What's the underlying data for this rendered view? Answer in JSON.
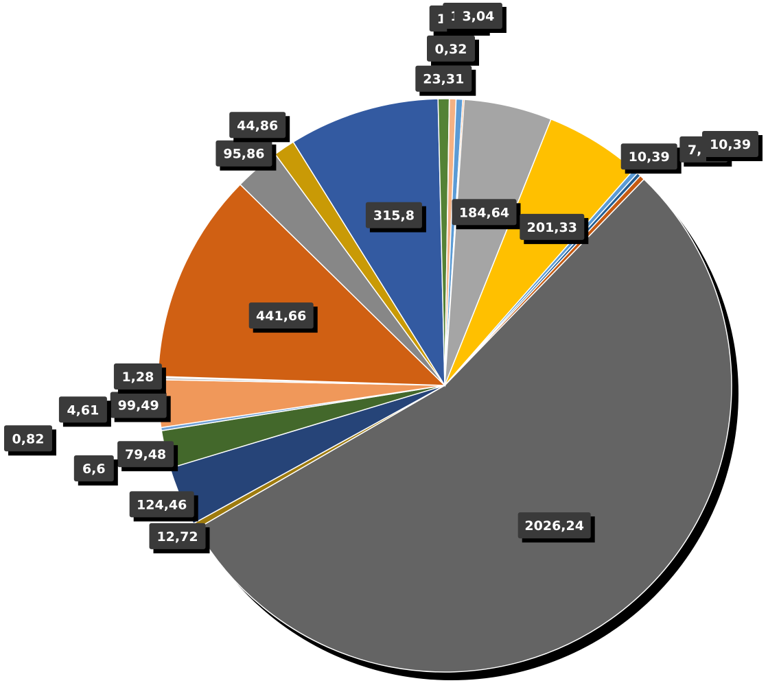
{
  "chart_data": {
    "type": "pie",
    "title": "",
    "slices": [
      {
        "value": 2026.24,
        "label": "2026,24",
        "color": "#646464"
      },
      {
        "value": 12.72,
        "label": "12,72",
        "color": "#9e7b0e"
      },
      {
        "value": 124.46,
        "label": "124,46",
        "color": "#264478"
      },
      {
        "value": 79.48,
        "label": "79,48",
        "color": "#43682b"
      },
      {
        "value": 6.6,
        "label": "6,6",
        "color": "#6fa0d6"
      },
      {
        "value": 99.49,
        "label": "99,49",
        "color": "#f0985a"
      },
      {
        "value": 4.61,
        "label": "4,61",
        "color": "#bfbfbf"
      },
      {
        "value": 1.28,
        "label": "1,28",
        "color": "#4472c4"
      },
      {
        "value": 0.82,
        "label": "0,82",
        "color": "#ffd966"
      },
      {
        "value": 441.66,
        "label": "441,66",
        "color": "#d06013"
      },
      {
        "value": 95.86,
        "label": "95,86",
        "color": "#878787"
      },
      {
        "value": 44.86,
        "label": "44,86",
        "color": "#c99a06"
      },
      {
        "value": 315.8,
        "label": "315,8",
        "color": "#335aa1"
      },
      {
        "value": 23.31,
        "label": "23,31",
        "color": "#548235"
      },
      {
        "value": 0.32,
        "label": "0,32",
        "color": "#8faadc"
      },
      {
        "value": 13.77,
        "label": "13,77",
        "color": "#f4b183"
      },
      {
        "value": 13.77,
        "label": "13,77",
        "color": "#5b9bd5"
      },
      {
        "value": 3.04,
        "label": "3,04",
        "color": "#ed7d31"
      },
      {
        "value": 184.64,
        "label": "184,64",
        "color": "#a5a5a5"
      },
      {
        "value": 201.33,
        "label": "201,33",
        "color": "#ffc000"
      },
      {
        "value": 10.39,
        "label": "10,39",
        "color": "#5b9bd5"
      },
      {
        "value": 7.92,
        "label": "7,92",
        "color": "#255e91"
      },
      {
        "value": 10.39,
        "label": "10,39",
        "color": "#c55a11"
      }
    ],
    "colors": {
      "label_box": "#3a3a3a",
      "shadow": "#000000",
      "separator": "#ffffff"
    }
  }
}
